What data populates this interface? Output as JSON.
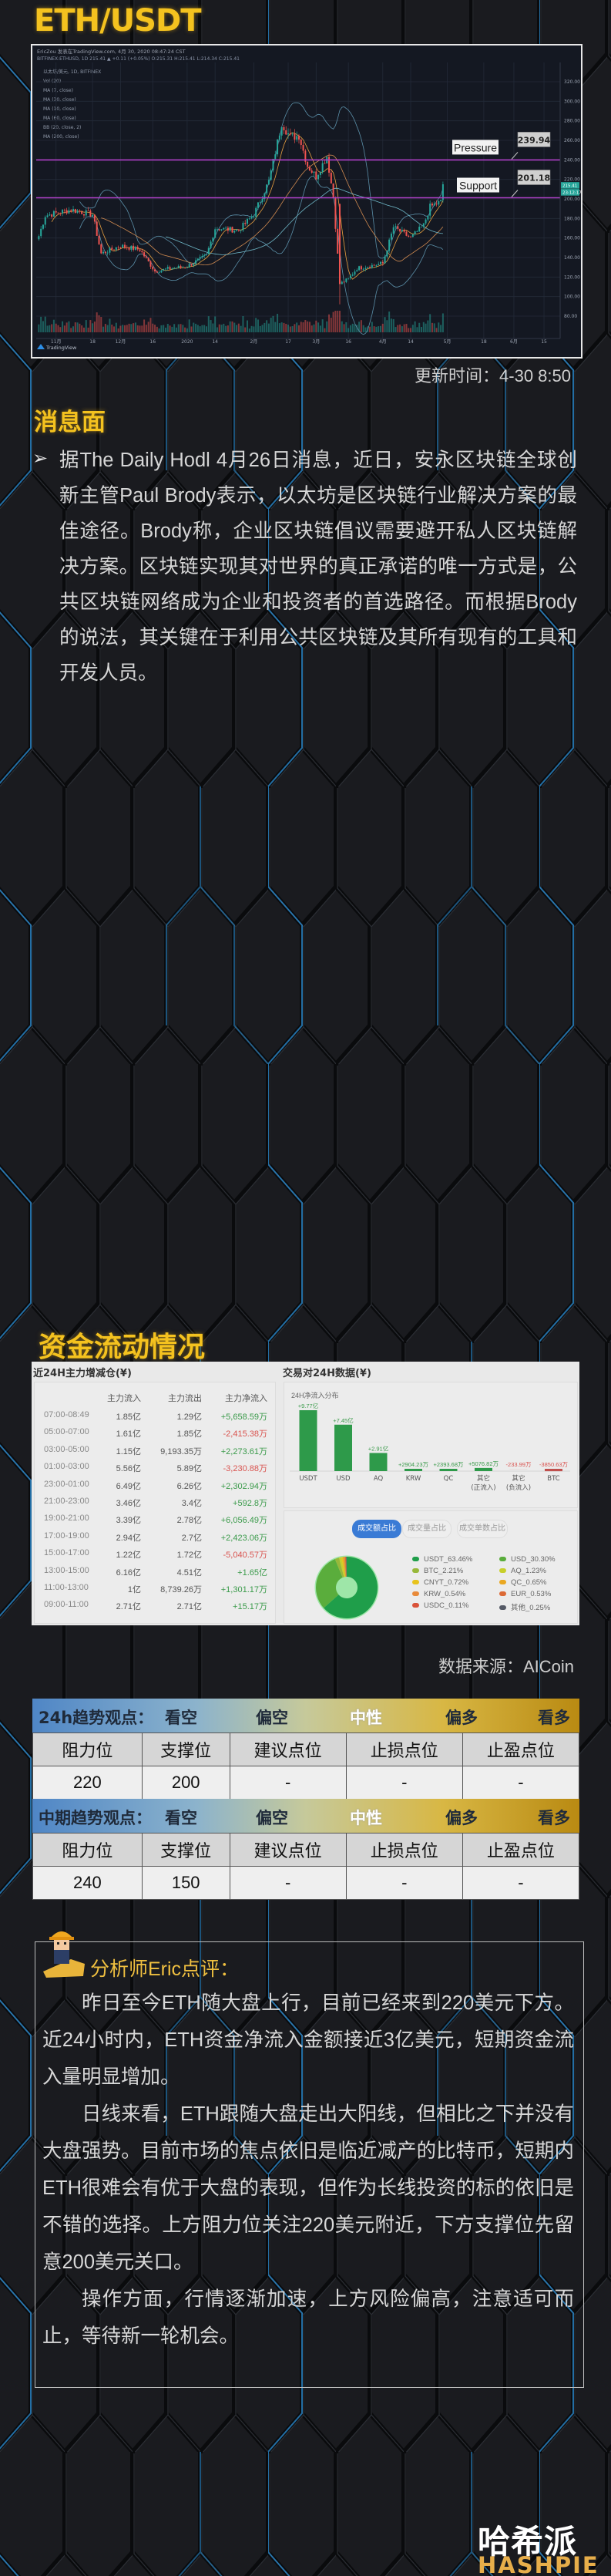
{
  "title": "ETH/USDT",
  "chart": {
    "header_line1": "EricZou 发表在TradingView.com, 4月 30, 2020 08:47:24 CST",
    "header_line2": "BITFINEX:ETHUSD, 1D 215.41 ▲ +0.11 (+0.05%) O:215.31 H:215.41 L:214.34 C:215.41",
    "indicators": [
      "以太坊/美元, 1D, BITFINEX",
      "Vol (20)",
      "MA (7, close)",
      "MA (30, close)",
      "MA (10, close)",
      "MA (60, close)",
      "BB (20, close, 2)",
      "MA (200, close)"
    ],
    "pressure_label": "Pressure",
    "pressure_value": "239.94",
    "support_label": "Support",
    "support_value": "201.18",
    "last_price_tag": "215.41",
    "countdown_tag": "23:12:17",
    "brand": "TradingView",
    "colors": {
      "up": "#26a69a",
      "down": "#ef5350",
      "level_line": "#b040c8"
    }
  },
  "chart_data": {
    "type": "candlestick",
    "ylim": [
      70,
      330
    ],
    "yticks": [
      "320.00",
      "300.00",
      "280.00",
      "260.00",
      "240.00",
      "220.00",
      "200.00",
      "180.00",
      "160.00",
      "140.00",
      "120.00",
      "100.00",
      "80.00"
    ],
    "xticks": [
      {
        "label": "11月",
        "date": "2019-11-01"
      },
      {
        "label": "18",
        "date": "2019-11-18"
      },
      {
        "label": "12月",
        "date": "2019-12-01"
      },
      {
        "label": "16",
        "date": "2019-12-16"
      },
      {
        "label": "2020",
        "date": "2020-01-01"
      },
      {
        "label": "14",
        "date": "2020-01-14"
      },
      {
        "label": "2月",
        "date": "2020-02-01"
      },
      {
        "label": "17",
        "date": "2020-02-17"
      },
      {
        "label": "3月",
        "date": "2020-03-01"
      },
      {
        "label": "16",
        "date": "2020-03-16"
      },
      {
        "label": "4月",
        "date": "2020-04-01"
      },
      {
        "label": "14",
        "date": "2020-04-14"
      },
      {
        "label": "5月",
        "date": "2020-05-01"
      },
      {
        "label": "18",
        "date": "2020-05-18"
      },
      {
        "label": "6月",
        "date": "2020-06-01"
      },
      {
        "label": "15",
        "date": "2020-06-15"
      }
    ],
    "close_keypoints": [
      [
        "2019-10-24",
        162
      ],
      [
        "2019-10-27",
        183
      ],
      [
        "2019-11-08",
        189
      ],
      [
        "2019-11-18",
        184
      ],
      [
        "2019-11-22",
        144
      ],
      [
        "2019-12-01",
        152
      ],
      [
        "2019-12-10",
        148
      ],
      [
        "2019-12-17",
        126
      ],
      [
        "2019-12-25",
        129
      ],
      [
        "2020-01-01",
        131
      ],
      [
        "2020-01-10",
        142
      ],
      [
        "2020-01-14",
        170
      ],
      [
        "2020-01-25",
        168
      ],
      [
        "2020-02-01",
        184
      ],
      [
        "2020-02-08",
        218
      ],
      [
        "2020-02-14",
        278
      ],
      [
        "2020-02-18",
        263
      ],
      [
        "2020-02-22",
        265
      ],
      [
        "2020-02-26",
        234
      ],
      [
        "2020-03-01",
        223
      ],
      [
        "2020-03-06",
        244
      ],
      [
        "2020-03-09",
        202
      ],
      [
        "2020-03-12",
        113
      ],
      [
        "2020-03-16",
        118
      ],
      [
        "2020-03-20",
        129
      ],
      [
        "2020-04-01",
        134
      ],
      [
        "2020-04-06",
        171
      ],
      [
        "2020-04-14",
        160
      ],
      [
        "2020-04-20",
        173
      ],
      [
        "2020-04-23",
        192
      ],
      [
        "2020-04-28",
        197
      ],
      [
        "2020-04-29",
        215
      ]
    ],
    "levels": {
      "pressure": 239.94,
      "support": 201.18
    }
  },
  "update_time": "更新时间：4-30 8:50",
  "news": {
    "title": "消息面",
    "bullet": "➢",
    "text": "据The Daily Hodl 4月26日消息，近日，安永区块链全球创新主管Paul Brody表示，以太坊是区块链行业解决方案的最佳途径。Brody称，企业区块链倡议需要避开私人区块链解决方案。区块链实现其对世界的真正承诺的唯一方式是，公共区块链网络成为企业和投资者的首选路径。而根据Brody的说法，其关键在于利用公共区块链及其所有现有的工具和开发人员。"
  },
  "fund_flow": {
    "title": "资金流动情况",
    "left_panel": {
      "title": "近24H主力增减仓(¥)",
      "headers": [
        "主力流入",
        "主力流出",
        "主力净流入"
      ],
      "rows": [
        {
          "time": "07:00-08:49",
          "in": "1.85亿",
          "out": "1.29亿",
          "net": "+5,658.59万",
          "sign": "pos"
        },
        {
          "time": "05:00-07:00",
          "in": "1.61亿",
          "out": "1.85亿",
          "net": "-2,415.38万",
          "sign": "neg"
        },
        {
          "time": "03:00-05:00",
          "in": "1.15亿",
          "out": "9,193.35万",
          "net": "+2,273.61万",
          "sign": "pos"
        },
        {
          "time": "01:00-03:00",
          "in": "5.56亿",
          "out": "5.89亿",
          "net": "-3,230.88万",
          "sign": "neg"
        },
        {
          "time": "23:00-01:00",
          "in": "6.49亿",
          "out": "6.26亿",
          "net": "+2,302.94万",
          "sign": "pos"
        },
        {
          "time": "21:00-23:00",
          "in": "3.46亿",
          "out": "3.4亿",
          "net": "+592.8万",
          "sign": "pos"
        },
        {
          "time": "19:00-21:00",
          "in": "3.39亿",
          "out": "2.78亿",
          "net": "+6,056.49万",
          "sign": "pos"
        },
        {
          "time": "17:00-19:00",
          "in": "2.94亿",
          "out": "2.7亿",
          "net": "+2,423.06万",
          "sign": "pos"
        },
        {
          "time": "15:00-17:00",
          "in": "1.22亿",
          "out": "1.72亿",
          "net": "-5,040.57万",
          "sign": "neg"
        },
        {
          "time": "13:00-15:00",
          "in": "6.16亿",
          "out": "4.51亿",
          "net": "+1.65亿",
          "sign": "pos"
        },
        {
          "time": "11:00-13:00",
          "in": "1亿",
          "out": "8,739.26万",
          "net": "+1,301.17万",
          "sign": "pos"
        },
        {
          "time": "09:00-11:00",
          "in": "2.71亿",
          "out": "2.71亿",
          "net": "+15.17万",
          "sign": "pos"
        }
      ]
    },
    "right_panel": {
      "title": "交易对24H数据(¥)",
      "bar_title": "24H净流入分布",
      "bars": [
        {
          "category": "USDT",
          "value_wan": 97700,
          "label": "+9.77亿"
        },
        {
          "category": "USD",
          "value_wan": 74500,
          "label": "+7.45亿"
        },
        {
          "category": "AQ",
          "value_wan": 29100,
          "label": "+2.91亿"
        },
        {
          "category": "KRW",
          "value_wan": 2904.23,
          "label": "+2904.23万"
        },
        {
          "category": "QC",
          "value_wan": 2393.68,
          "label": "+2393.68万"
        },
        {
          "category": "其它\n(正流入)",
          "value_wan": 5076.82,
          "label": "+5076.82万"
        },
        {
          "category": "其它\n(负流入)",
          "value_wan": -233.99,
          "label": "-233.99万"
        },
        {
          "category": "BTC",
          "value_wan": -3850.63,
          "label": "-3850.63万"
        }
      ],
      "tabs": [
        {
          "label": "成交额占比",
          "active": true
        },
        {
          "label": "成交量占比",
          "active": false
        },
        {
          "label": "成交单数占比",
          "active": false
        }
      ],
      "pie": [
        {
          "name": "USDT",
          "pct": 63.46,
          "label": "USDT_63.46%",
          "color": "#1f9e4a"
        },
        {
          "name": "USD",
          "pct": 30.3,
          "label": "USD_30.30%",
          "color": "#5aad3c"
        },
        {
          "name": "BTC",
          "pct": 2.21,
          "label": "BTC_2.21%",
          "color": "#98b83a"
        },
        {
          "name": "AQ",
          "pct": 1.23,
          "label": "AQ_1.23%",
          "color": "#c8cf2a"
        },
        {
          "name": "CNYT",
          "pct": 0.72,
          "label": "CNYT_0.72%",
          "color": "#e8c31c"
        },
        {
          "name": "QC",
          "pct": 0.65,
          "label": "QC_0.65%",
          "color": "#eaa822"
        },
        {
          "name": "KRW",
          "pct": 0.54,
          "label": "KRW_0.54%",
          "color": "#e88a3a"
        },
        {
          "name": "EUR",
          "pct": 0.53,
          "label": "EUR_0.53%",
          "color": "#dc6a36"
        },
        {
          "name": "USDC",
          "pct": 0.11,
          "label": "USDC_0.11%",
          "color": "#d9533a"
        },
        {
          "name": "其他",
          "pct": 0.25,
          "label": "其他_0.25%",
          "color": "#555a66"
        }
      ]
    },
    "source": "数据来源：AICoin"
  },
  "trend_tables": [
    {
      "title": "24h趋势观点：",
      "scale": [
        "看空",
        "偏空",
        "中性",
        "偏多",
        "看多"
      ],
      "selected": "中性",
      "headers": [
        "阻力位",
        "支撑位",
        "建议点位",
        "止损点位",
        "止盈点位"
      ],
      "values": [
        "220",
        "200",
        "-",
        "-",
        "-"
      ]
    },
    {
      "title": "中期趋势观点：",
      "scale": [
        "看空",
        "偏空",
        "中性",
        "偏多",
        "看多"
      ],
      "selected": "中性",
      "headers": [
        "阻力位",
        "支撑位",
        "建议点位",
        "止损点位",
        "止盈点位"
      ],
      "values": [
        "240",
        "150",
        "-",
        "-",
        "-"
      ]
    }
  ],
  "analyst": {
    "title": "分析师Eric点评：",
    "paragraphs": [
      "昨日至今ETH随大盘上行，目前已经来到220美元下方。近24小时内，ETH资金净流入金额接近3亿美元，短期资金流入量明显增加。",
      "日线来看，ETH跟随大盘走出大阳线，但相比之下并没有大盘强势。目前市场的焦点依旧是临近减产的比特币，短期内ETH很难会有优于大盘的表现，但作为长线投资的标的依旧是不错的选择。上方阻力位关注220美元附近，下方支撑位先留意200美元关口。",
      "操作方面，行情逐渐加速，上方风险偏高，注意适可而止，等待新一轮机会。"
    ]
  },
  "logo": {
    "cn": "哈希派",
    "en": "HASHPIE"
  }
}
